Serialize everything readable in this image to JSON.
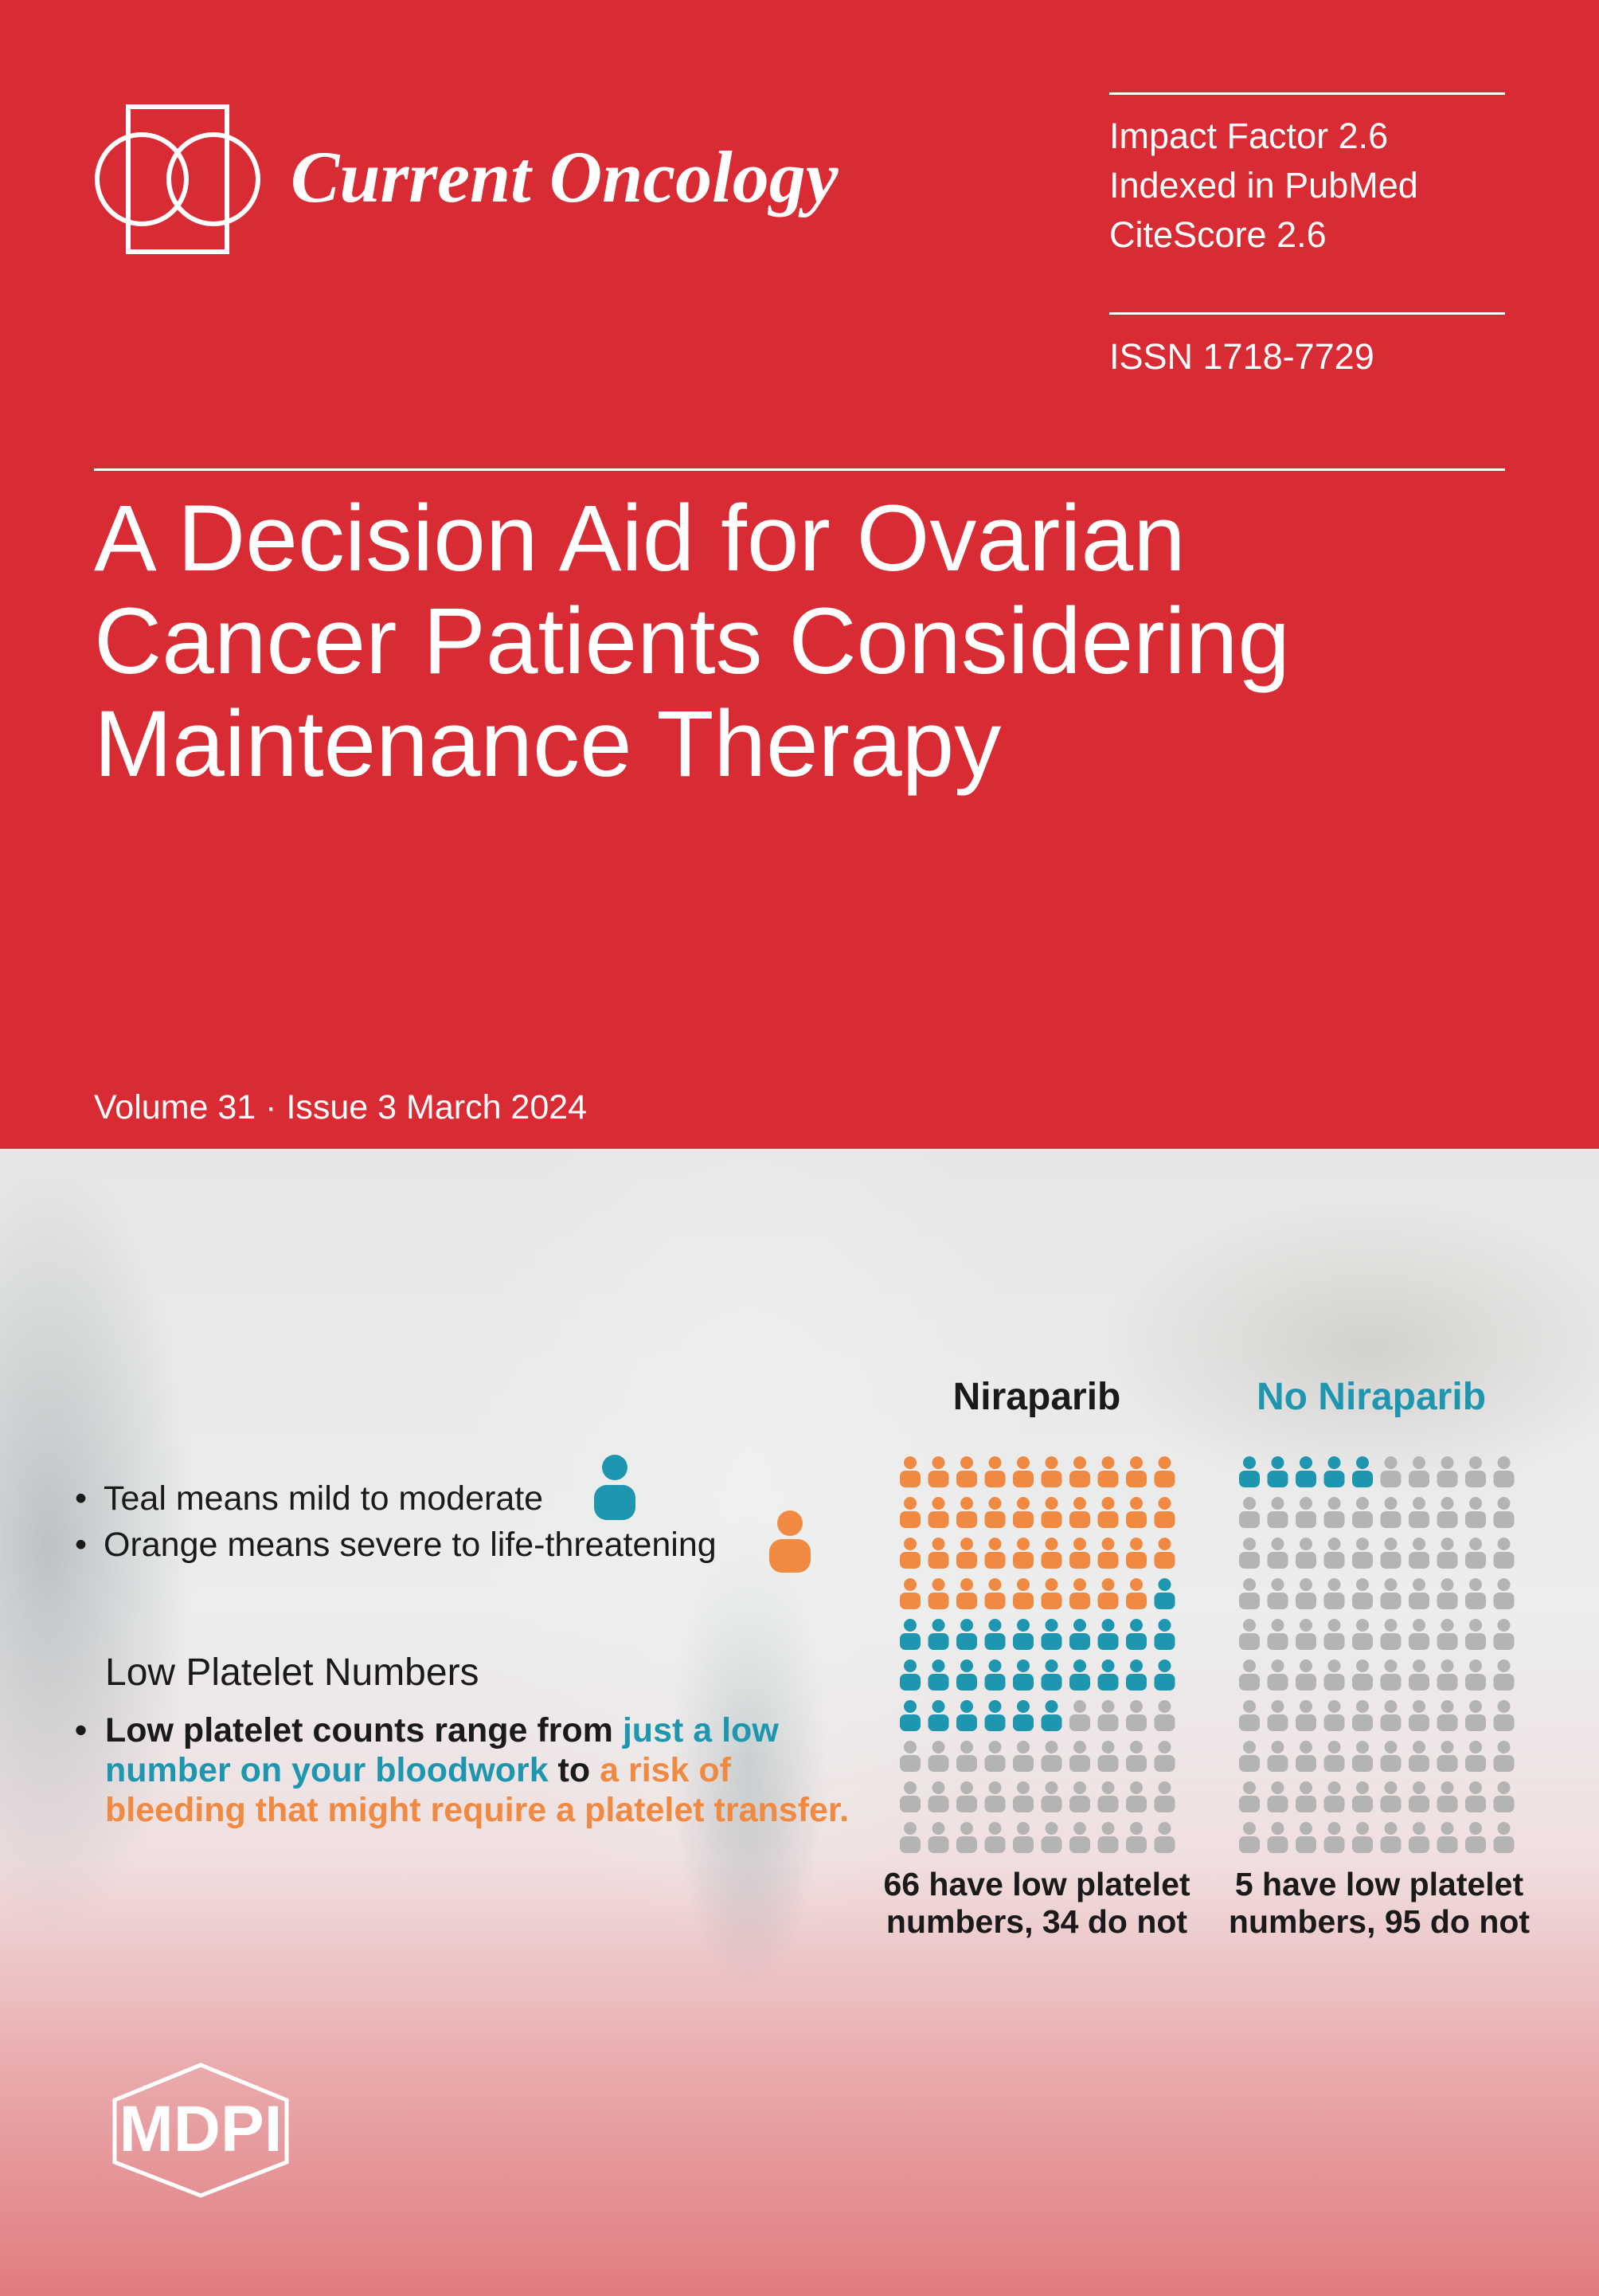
{
  "journal": {
    "name": "Current Oncology",
    "metrics": [
      "Impact Factor 2.6",
      "Indexed in PubMed",
      "CiteScore 2.6"
    ],
    "issn": "ISSN 1718-7729"
  },
  "article": {
    "title_lines": [
      "A Decision Aid for Ovarian",
      "Cancer Patients Considering",
      "Maintenance Therapy"
    ]
  },
  "issue": {
    "volume": "Volume 31",
    "separator": "·",
    "issue_date": "Issue 3 March 2024"
  },
  "infographic": {
    "legend": {
      "teal": "Teal means mild to moderate",
      "orange": "Orange means severe to life-threatening"
    },
    "section_heading": "Low Platelet Numbers",
    "bullet": {
      "part1": "Low platelet counts range from ",
      "teal_part": "just a low number on your bloodwork",
      "part2": " to ",
      "orange_part": "a risk of bleeding that might require a platelet transfer."
    },
    "colors": {
      "orange": "#f08a43",
      "teal": "#1e96b0",
      "gray": "#b4b4b4"
    },
    "groups": [
      {
        "title": "Niraparib",
        "severe": 39,
        "mild": 27,
        "none": 34,
        "caption_lines": [
          "66 have low platelet",
          "numbers, 34 do not"
        ]
      },
      {
        "title": "No Niraparib",
        "severe": 0,
        "mild": 5,
        "none": 95,
        "caption_lines": [
          "5 have low platelet",
          "numbers, 95 do not"
        ]
      }
    ]
  },
  "publisher": {
    "name": "MDPI"
  }
}
